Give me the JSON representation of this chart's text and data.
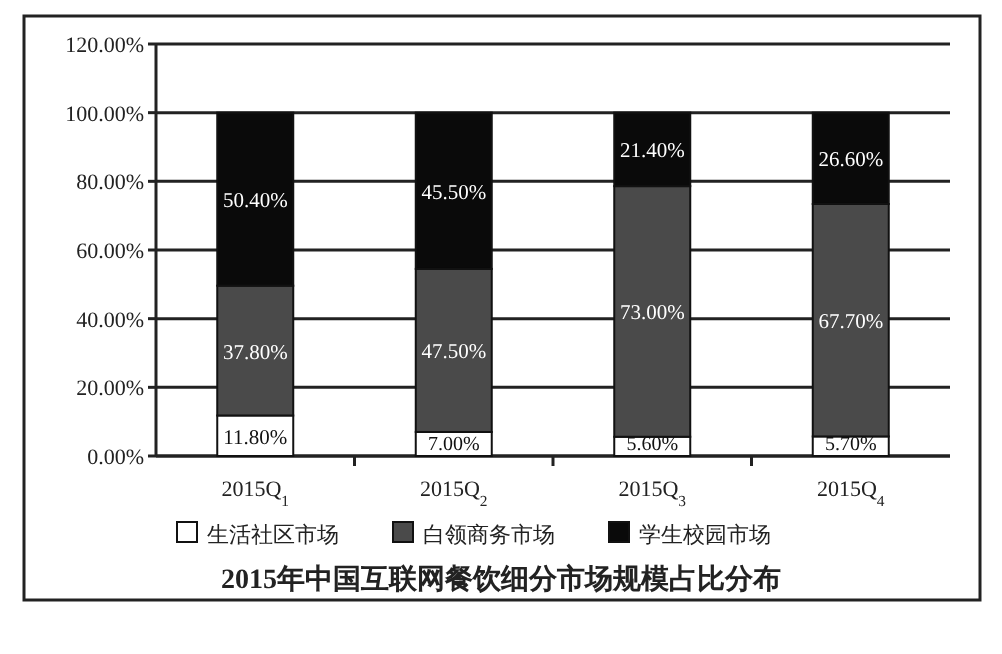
{
  "chart_data": {
    "type": "bar",
    "stacked": true,
    "title": "2015年中国互联网餐饮细分市场规模占比分布",
    "categories": [
      "2015Q$_{1}$",
      "2015Q$_{2}$",
      "2015Q$_{3}$",
      "2015Q$_{4}$"
    ],
    "series": [
      {
        "name": "生活社区市场",
        "color": "#ffffff",
        "values": [
          11.8,
          7.0,
          5.6,
          5.7
        ],
        "value_labels": [
          "11.80%",
          "7.00%",
          "5.60%",
          "5.70%"
        ]
      },
      {
        "name": "白领商务市场",
        "color": "#4a4a4a",
        "values": [
          37.8,
          47.5,
          73.0,
          67.7
        ],
        "value_labels": [
          "37.80%",
          "47.50%",
          "73.00%",
          "67.70%"
        ]
      },
      {
        "name": "学生校园市场",
        "color": "#0a0a0a",
        "values": [
          50.4,
          45.5,
          21.4,
          26.6
        ],
        "value_labels": [
          "50.40%",
          "45.50%",
          "21.40%",
          "26.60%"
        ]
      }
    ],
    "ylim": [
      0,
      120
    ],
    "yticks": [
      {
        "value": 0,
        "label": "0.00%"
      },
      {
        "value": 20,
        "label": "20.00%"
      },
      {
        "value": 40,
        "label": "40.00%"
      },
      {
        "value": 60,
        "label": "60.00%"
      },
      {
        "value": 80,
        "label": "80.00%"
      },
      {
        "value": 100,
        "label": "100.00%"
      },
      {
        "value": 120,
        "label": "120.00%"
      }
    ],
    "grid": "y",
    "legend": "bottom"
  }
}
